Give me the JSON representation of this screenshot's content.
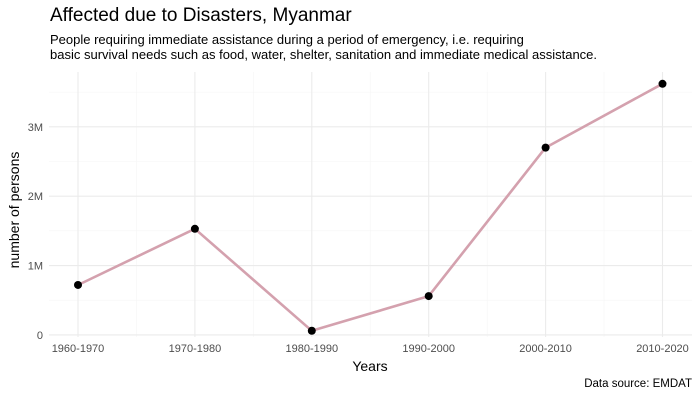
{
  "chart_data": {
    "type": "line",
    "title": "Affected due to Disasters, Myanmar",
    "subtitle_lines": [
      "People requiring immediate assistance during a period of emergency, i.e. requiring",
      "basic survival needs such as food, water, shelter, sanitation and immediate medical assistance."
    ],
    "xlabel": "Years",
    "ylabel": "number of persons",
    "caption": "Data source: EMDAT",
    "categories": [
      "1960-1970",
      "1970-1980",
      "1980-1990",
      "1990-2000",
      "2000-2010",
      "2010-2020"
    ],
    "series": [
      {
        "values": [
          720000,
          1530000,
          60000,
          560000,
          2700000,
          3620000
        ]
      }
    ],
    "y_ticks": [
      {
        "value": 0,
        "label": "0"
      },
      {
        "value": 1000000,
        "label": "1M"
      },
      {
        "value": 2000000,
        "label": "2M"
      },
      {
        "value": 3000000,
        "label": "3M"
      }
    ],
    "ylim": [
      -30000,
      3790000
    ],
    "grid": true,
    "legend": "none",
    "colors": {
      "line": "#d4a1ae",
      "point": "#000000",
      "grid_major": "#ebebeb",
      "grid_minor": "#f5f5f5"
    }
  }
}
